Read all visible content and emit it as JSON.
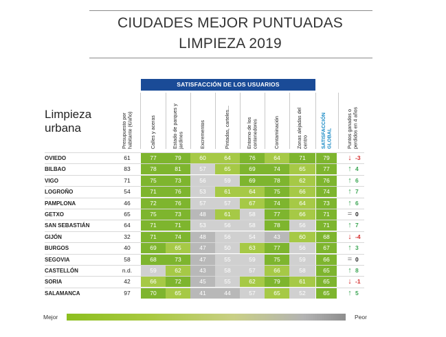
{
  "title": {
    "line1": "CIUDADES MEJOR PUNTUADAS",
    "line2": "LIMPIEZA 2019"
  },
  "side_label": {
    "line1": "Limpieza",
    "line2": "urbana"
  },
  "banner": "SATISFACCIÓN DE LOS USUARIOS",
  "headers": {
    "budget": "Presupuesto por habitante (€/año)",
    "columns": [
      "Calles y aceras",
      "Estado de parques y jardines",
      "Excrementos",
      "Pintadas, carteles...",
      "Entorno de los contenedores",
      "Contaminación",
      "Zonas alejadas del centro"
    ],
    "global": "SATISFACCIÓN GLOBAL",
    "points": "Puntos ganados o perdidos en 4 años"
  },
  "colors": {
    "banner": "#1a4b97",
    "satisfaccion_text": "#1a8bc6",
    "green": "#7eb52e",
    "light_green": "#a6c946",
    "gray": "#b8b8b8",
    "light_gray": "#d0d0d0",
    "arrow_up": "#3aa552",
    "arrow_down": "#d42a2a"
  },
  "rows": [
    {
      "city": "OVIEDO",
      "budget": "61",
      "values": [
        "77",
        "79",
        "60",
        "64",
        "76",
        "64",
        "71"
      ],
      "global": "79",
      "trend": "down",
      "points": "-3"
    },
    {
      "city": "BILBAO",
      "budget": "83",
      "values": [
        "78",
        "81",
        "57",
        "65",
        "69",
        "74",
        "65"
      ],
      "global": "77",
      "trend": "up",
      "points": "4"
    },
    {
      "city": "VIGO",
      "budget": "71",
      "values": [
        "75",
        "73",
        "56",
        "59",
        "69",
        "78",
        "62"
      ],
      "global": "76",
      "trend": "up",
      "points": "6"
    },
    {
      "city": "LOGROÑO",
      "budget": "54",
      "values": [
        "71",
        "76",
        "53",
        "61",
        "64",
        "75",
        "66"
      ],
      "global": "74",
      "trend": "up",
      "points": "7"
    },
    {
      "city": "PAMPLONA",
      "budget": "46",
      "values": [
        "72",
        "76",
        "57",
        "57",
        "67",
        "74",
        "64"
      ],
      "global": "73",
      "trend": "up",
      "points": "6"
    },
    {
      "city": "GETXO",
      "budget": "65",
      "values": [
        "75",
        "73",
        "48",
        "61",
        "58",
        "77",
        "66"
      ],
      "global": "71",
      "trend": "equal",
      "points": "0"
    },
    {
      "city": "SAN SEBASTIÁN",
      "budget": "64",
      "values": [
        "71",
        "71",
        "53",
        "56",
        "58",
        "78",
        "56"
      ],
      "global": "71",
      "trend": "up",
      "points": "7"
    },
    {
      "city": "GIJÓN",
      "budget": "32",
      "values": [
        "71",
        "74",
        "48",
        "56",
        "54",
        "43",
        "60"
      ],
      "global": "68",
      "trend": "down",
      "points": "-4"
    },
    {
      "city": "BURGOS",
      "budget": "40",
      "values": [
        "69",
        "65",
        "47",
        "50",
        "63",
        "77",
        "56"
      ],
      "global": "67",
      "trend": "up",
      "points": "3"
    },
    {
      "city": "SEGOVIA",
      "budget": "58",
      "values": [
        "68",
        "73",
        "47",
        "55",
        "59",
        "75",
        "59"
      ],
      "global": "66",
      "trend": "equal",
      "points": "0"
    },
    {
      "city": "CASTELLÓN",
      "budget": "n.d.",
      "values": [
        "59",
        "62",
        "43",
        "58",
        "57",
        "66",
        "58"
      ],
      "global": "65",
      "trend": "up",
      "points": "8"
    },
    {
      "city": "SORIA",
      "budget": "42",
      "values": [
        "66",
        "72",
        "45",
        "55",
        "62",
        "79",
        "61"
      ],
      "global": "65",
      "trend": "down",
      "points": "-1"
    },
    {
      "city": "SALAMANCA",
      "budget": "97",
      "values": [
        "70",
        "65",
        "41",
        "44",
        "57",
        "65",
        "52"
      ],
      "global": "65",
      "trend": "up",
      "points": "5"
    }
  ],
  "legend": {
    "best": "Mejor",
    "worst": "Peor"
  }
}
